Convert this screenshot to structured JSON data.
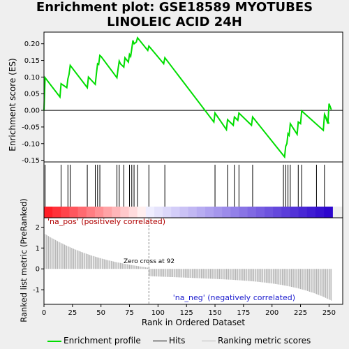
{
  "title": "Enrichment plot: GSE18589 MYOTUBES\nLINOLEIC ACID 24H",
  "title_lines": [
    "Enrichment plot: GSE18589 MYOTUBES",
    "LINOLEIC ACID 24H"
  ],
  "colors": {
    "profile": "#00dd00",
    "hits": "#000000",
    "metric_bars": "#a0a0a0",
    "pos_label": "#b00000",
    "neg_label": "#1a1acd"
  },
  "chart_data": {
    "type": "line",
    "x_range": [
      0,
      262
    ],
    "x_ticks": [
      0,
      25,
      50,
      75,
      100,
      125,
      150,
      175,
      200,
      225,
      250
    ],
    "xlabel": "Rank in Ordered Dataset",
    "es_panel": {
      "ylabel": "Enrichment score (ES)",
      "ylim": [
        -0.155,
        0.235
      ],
      "y_ticks": [
        0.2,
        0.15,
        0.1,
        0.05,
        0.0,
        -0.05,
        -0.1,
        -0.15
      ],
      "y_tick_labels": [
        "0.20",
        "0.15",
        "0.10",
        "0.05",
        "0.00",
        "-0.05",
        "-0.10",
        "-0.15"
      ],
      "series": [
        {
          "name": "Enrichment profile",
          "x": [
            0,
            1,
            14,
            15,
            20,
            21,
            22,
            23,
            38,
            39,
            45,
            46,
            47,
            48,
            49,
            50,
            64,
            65,
            66,
            67,
            70,
            71,
            74,
            75,
            76,
            77,
            78,
            79,
            81,
            82,
            91,
            92,
            105,
            106,
            149,
            150,
            160,
            161,
            166,
            167,
            170,
            171,
            182,
            183,
            211,
            212,
            213,
            214,
            215,
            216,
            222,
            223,
            225,
            226,
            245,
            246,
            250
          ],
          "y": [
            0.0,
            0.098,
            0.04,
            0.08,
            0.068,
            0.095,
            0.108,
            0.135,
            0.068,
            0.1,
            0.078,
            0.11,
            0.14,
            0.138,
            0.165,
            0.162,
            0.098,
            0.125,
            0.148,
            0.14,
            0.13,
            0.158,
            0.145,
            0.168,
            0.162,
            0.185,
            0.21,
            0.2,
            0.205,
            0.218,
            0.18,
            0.193,
            0.14,
            0.158,
            -0.035,
            -0.008,
            -0.058,
            -0.028,
            -0.045,
            -0.02,
            -0.03,
            -0.008,
            -0.045,
            -0.02,
            -0.14,
            -0.108,
            -0.1,
            -0.07,
            -0.075,
            -0.04,
            -0.072,
            -0.035,
            -0.04,
            -0.002,
            -0.06,
            -0.012,
            -0.04
          ]
        },
        {
          "name": "Enrichment profile tail",
          "x": [
            246,
            248,
            249,
            250,
            252
          ],
          "y": [
            -0.012,
            -0.03,
            -0.04,
            0.02,
            0.002
          ]
        }
      ],
      "zero_line": 0
    },
    "hits": {
      "name": "Hits",
      "positions": [
        1,
        15,
        21,
        23,
        38,
        45,
        47,
        49,
        64,
        66,
        70,
        75,
        77,
        79,
        82,
        92,
        106,
        150,
        161,
        167,
        171,
        183,
        210,
        212,
        214,
        216,
        223,
        226,
        239,
        246
      ]
    },
    "metric_panel": {
      "name": "Ranking metric scores",
      "ylabel": "Ranked list metric (PreRanked)",
      "ylim": [
        -1.7,
        2.45
      ],
      "y_ticks": [
        2,
        1,
        0,
        -1
      ],
      "y_tick_labels": [
        "2",
        "1",
        "0",
        "-1"
      ],
      "start_value": 2.2,
      "end_value": -1.55,
      "zero_cross": 92,
      "zero_cross_label": "Zero cross at 92",
      "pos_label": "'na_pos' (positively correlated)",
      "neg_label": "'na_neg' (negatively correlated)"
    },
    "legend": {
      "placement": "bottom",
      "entries": [
        "Enrichment profile",
        "Hits",
        "Ranking metric scores"
      ]
    },
    "n_genes": 253
  }
}
